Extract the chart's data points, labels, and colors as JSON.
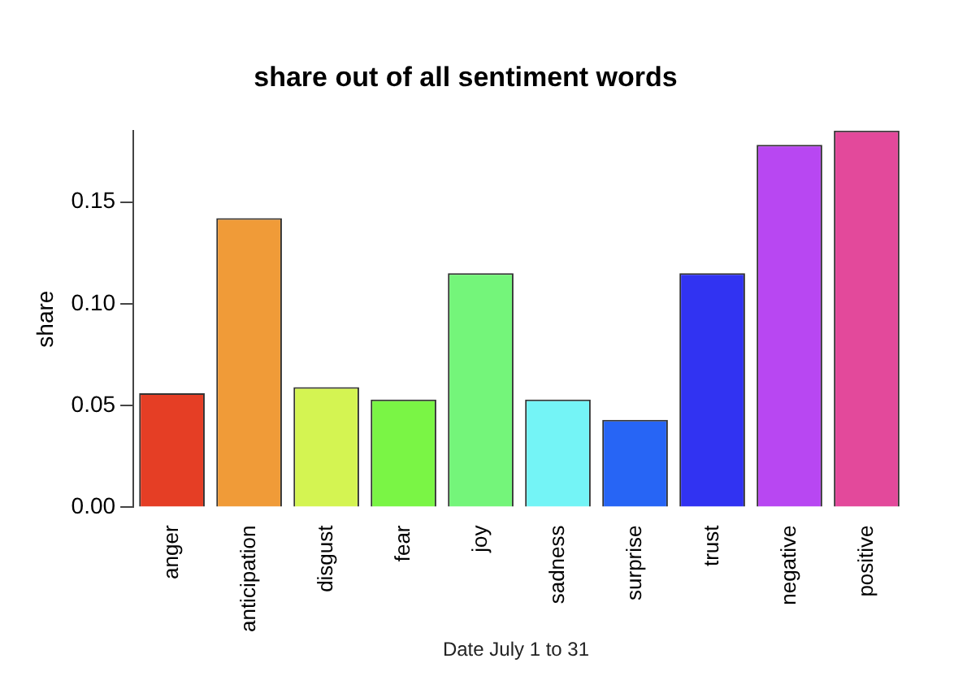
{
  "chart_data": {
    "type": "bar",
    "title": "share out of all sentiment words",
    "ylabel": "share",
    "categories": [
      "anger",
      "anticipation",
      "disgust",
      "fear",
      "joy",
      "sadness",
      "surprise",
      "trust",
      "negative",
      "positive"
    ],
    "values": [
      0.056,
      0.142,
      0.059,
      0.053,
      0.115,
      0.053,
      0.043,
      0.115,
      0.178,
      0.185
    ],
    "colors": [
      "#e53e25",
      "#f09b38",
      "#d4f452",
      "#7af545",
      "#74f57a",
      "#74f4f6",
      "#2765f5",
      "#3133f2",
      "#b847f2",
      "#e3499b"
    ],
    "ylim": [
      0,
      0.185
    ],
    "yticks": [
      {
        "value": 0,
        "label": "0.00"
      },
      0.05,
      {
        "value": 0.1,
        "label": "0.10"
      },
      0.15
    ],
    "grid": false,
    "legend": false,
    "annotations": [
      "Date July 1 to 31"
    ]
  }
}
